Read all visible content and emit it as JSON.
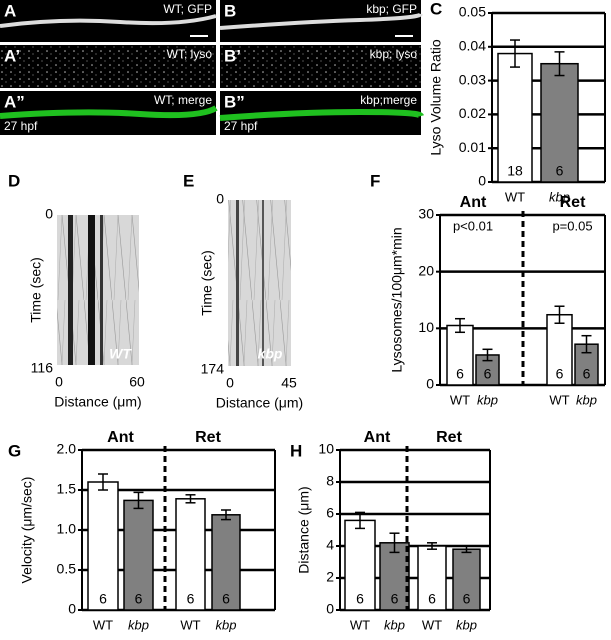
{
  "images": [
    {
      "label": "A",
      "caption": "WT; GFP"
    },
    {
      "label": "B",
      "caption": "kbp; GFP"
    },
    {
      "label": "A’",
      "caption": "WT; lyso"
    },
    {
      "label": "B’",
      "caption": "kbp; lyso"
    },
    {
      "label": "A”",
      "caption": "WT; merge",
      "stage": "27 hpf"
    },
    {
      "label": "B”",
      "caption": "kbp;merge",
      "stage": "27 hpf"
    }
  ],
  "kymographs": [
    {
      "label": "D",
      "ylabel": "Time (sec)",
      "yticks": [
        "0",
        "116"
      ],
      "xticks": [
        "0",
        "60"
      ],
      "xlabel": "Distance (μm)",
      "tag": "WT"
    },
    {
      "label": "E",
      "ylabel": "Time (sec)",
      "yticks": [
        "0",
        "174"
      ],
      "xticks": [
        "0",
        "45"
      ],
      "xlabel": "Distance (μm)",
      "tag": "kbp"
    }
  ],
  "chart_data": [
    {
      "type": "bar",
      "panel": "C",
      "ylabel": "Lyso Volume Ratio",
      "categories": [
        "WT",
        "kbp"
      ],
      "values": [
        0.038,
        0.035
      ],
      "errors": [
        0.004,
        0.0035
      ],
      "bar_labels": [
        "18",
        "6"
      ],
      "colors": [
        "#ffffff",
        "#808080"
      ],
      "ylim": [
        0,
        0.05
      ],
      "yticks": [
        0,
        0.01,
        0.02,
        0.03,
        0.04,
        0.05
      ],
      "grid": true
    },
    {
      "type": "bar",
      "panel": "F",
      "ylabel": "Lysosomes/100μm*min",
      "categories": [
        "WT",
        "kbp",
        "WT",
        "kbp"
      ],
      "groups": [
        "Ant",
        "Ret"
      ],
      "annotations": [
        "p<0.01",
        "p=0.05"
      ],
      "values": [
        10.5,
        5.3,
        12.4,
        7.2
      ],
      "errors": [
        1.2,
        1.0,
        1.5,
        1.5
      ],
      "bar_labels": [
        "6",
        "6",
        "6",
        "6"
      ],
      "colors": [
        "#ffffff",
        "#808080",
        "#ffffff",
        "#808080"
      ],
      "ylim": [
        0,
        30
      ],
      "yticks": [
        0,
        10,
        20,
        30
      ],
      "grid": true
    },
    {
      "type": "bar",
      "panel": "G",
      "ylabel": "Velocity (μm/sec)",
      "categories": [
        "WT",
        "kbp",
        "WT",
        "kbp"
      ],
      "groups": [
        "Ant",
        "Ret"
      ],
      "values": [
        1.6,
        1.37,
        1.39,
        1.19
      ],
      "errors": [
        0.1,
        0.1,
        0.05,
        0.06
      ],
      "bar_labels": [
        "6",
        "6",
        "6",
        "6"
      ],
      "colors": [
        "#ffffff",
        "#808080",
        "#ffffff",
        "#808080"
      ],
      "ylim": [
        0,
        2
      ],
      "yticks": [
        0,
        0.5,
        {
          "value": 1,
          "label": "1.0"
        },
        1.5,
        {
          "value": 2,
          "label": "2.0"
        }
      ],
      "grid": true
    },
    {
      "type": "bar",
      "panel": "H",
      "ylabel": "Distance (μm)",
      "categories": [
        "WT",
        "kbp",
        "WT",
        "kbp"
      ],
      "groups": [
        "Ant",
        "Ret"
      ],
      "values": [
        5.6,
        4.2,
        4.0,
        3.8
      ],
      "errors": [
        0.5,
        0.6,
        0.2,
        0.2
      ],
      "bar_labels": [
        "6",
        "6",
        "6",
        "6"
      ],
      "colors": [
        "#ffffff",
        "#808080",
        "#ffffff",
        "#808080"
      ],
      "ylim": [
        0,
        10
      ],
      "yticks": [
        0,
        2,
        4,
        6,
        8,
        10
      ],
      "grid": true
    }
  ]
}
